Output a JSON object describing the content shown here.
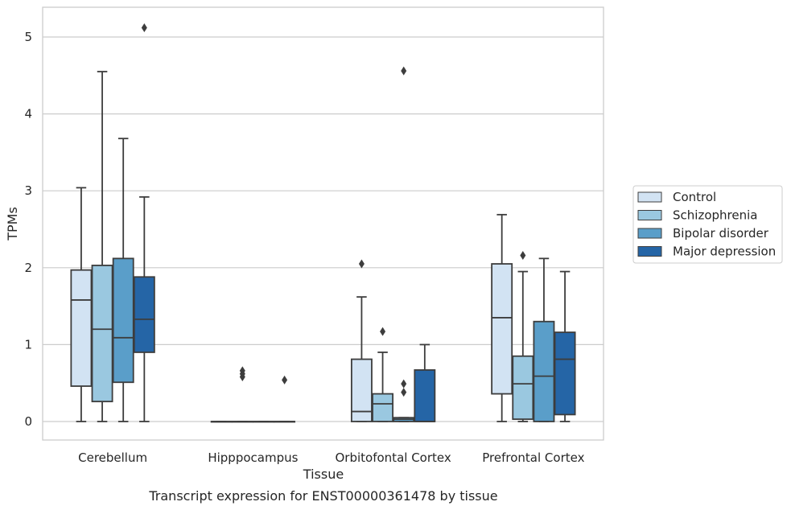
{
  "chart_data": {
    "type": "box",
    "title": "",
    "caption": "Transcript expression for ENST00000361478 by tissue",
    "xlabel": "Tissue",
    "ylabel": "TPMs",
    "ylim": [
      -0.25,
      5.38
    ],
    "yticks": [
      0,
      1,
      2,
      3,
      4,
      5
    ],
    "grid": true,
    "legend_position": "right",
    "categories": [
      "Cerebellum",
      "Hipppocampus",
      "Orbitofontal Cortex",
      "Prefrontal Cortex"
    ],
    "series": [
      {
        "name": "Control",
        "color": "#d2e3f3",
        "boxes": [
          {
            "whisker_low": 0,
            "q1": 0.46,
            "median": 1.58,
            "q3": 1.97,
            "whisker_high": 3.04,
            "outliers": []
          },
          {
            "whisker_low": 0,
            "q1": 0,
            "median": 0,
            "q3": 0,
            "whisker_high": 0,
            "outliers": []
          },
          {
            "whisker_low": 0,
            "q1": 0,
            "median": 0.13,
            "q3": 0.81,
            "whisker_high": 1.62,
            "outliers": [
              2.05
            ]
          },
          {
            "whisker_low": 0,
            "q1": 0.36,
            "median": 1.35,
            "q3": 2.05,
            "whisker_high": 2.69,
            "outliers": []
          }
        ]
      },
      {
        "name": "Schizophrenia",
        "color": "#9ac8e0",
        "boxes": [
          {
            "whisker_low": 0,
            "q1": 0.26,
            "median": 1.2,
            "q3": 2.03,
            "whisker_high": 4.55,
            "outliers": []
          },
          {
            "whisker_low": 0,
            "q1": 0,
            "median": 0,
            "q3": 0,
            "whisker_high": 0,
            "outliers": [
              0.58,
              0.62,
              0.66
            ]
          },
          {
            "whisker_low": 0,
            "q1": 0,
            "median": 0.23,
            "q3": 0.36,
            "whisker_high": 0.9,
            "outliers": [
              1.17
            ]
          },
          {
            "whisker_low": 0,
            "q1": 0.03,
            "median": 0.49,
            "q3": 0.85,
            "whisker_high": 1.95,
            "outliers": [
              2.16
            ]
          }
        ]
      },
      {
        "name": "Bipolar disorder",
        "color": "#5a9ec9",
        "boxes": [
          {
            "whisker_low": 0,
            "q1": 0.51,
            "median": 1.09,
            "q3": 2.12,
            "whisker_high": 3.68,
            "outliers": []
          },
          {
            "whisker_low": 0,
            "q1": 0,
            "median": 0,
            "q3": 0,
            "whisker_high": 0,
            "outliers": []
          },
          {
            "whisker_low": 0,
            "q1": 0,
            "median": 0.03,
            "q3": 0.05,
            "whisker_high": 0.05,
            "outliers": [
              0.38,
              0.49,
              4.56
            ]
          },
          {
            "whisker_low": 0,
            "q1": 0,
            "median": 0.59,
            "q3": 1.3,
            "whisker_high": 2.12,
            "outliers": []
          }
        ]
      },
      {
        "name": "Major depression",
        "color": "#2565a6",
        "boxes": [
          {
            "whisker_low": 0,
            "q1": 0.9,
            "median": 1.33,
            "q3": 1.88,
            "whisker_high": 2.92,
            "outliers": [
              5.12
            ]
          },
          {
            "whisker_low": 0,
            "q1": 0,
            "median": 0,
            "q3": 0,
            "whisker_high": 0,
            "outliers": [
              0.54
            ]
          },
          {
            "whisker_low": 0,
            "q1": 0,
            "median": 0,
            "q3": 0.67,
            "whisker_high": 1.0,
            "outliers": []
          },
          {
            "whisker_low": 0,
            "q1": 0.09,
            "median": 0.81,
            "q3": 1.16,
            "whisker_high": 1.95,
            "outliers": []
          }
        ]
      }
    ]
  }
}
